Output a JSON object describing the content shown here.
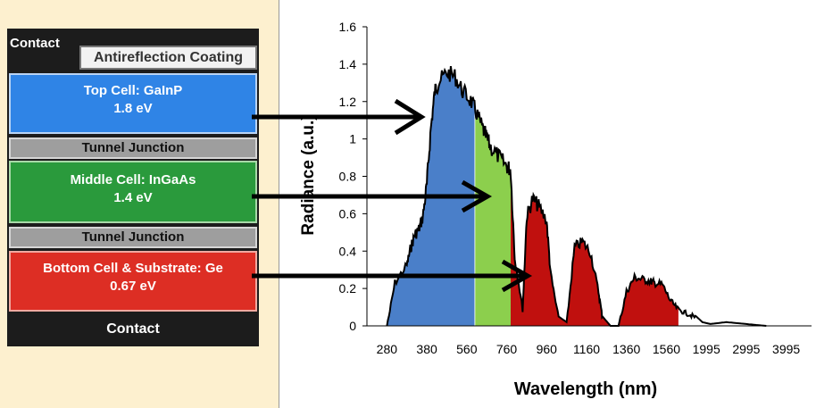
{
  "stack": {
    "contact_top": "Contact",
    "antireflection": "Antireflection Coating",
    "top_cell": {
      "name": "Top Cell: GaInP",
      "bandgap": "1.8 eV"
    },
    "tunnel_1": "Tunnel Junction",
    "middle_cell": {
      "name": "Middle Cell: InGaAs",
      "bandgap": "1.4 eV"
    },
    "tunnel_2": "Tunnel Junction",
    "bottom_cell": {
      "name": "Bottom Cell & Substrate: Ge",
      "bandgap": "0.67 eV"
    },
    "contact_bottom": "Contact"
  },
  "colors": {
    "top": "#4a7fc9",
    "middle": "#8ccf4d",
    "bottom": "#c0100e",
    "curve": "#000000"
  },
  "chart_data": {
    "type": "area",
    "xlabel": "Wavelength (nm)",
    "ylabel": "Radiance (a.u.)",
    "ylim": [
      0,
      1.6
    ],
    "x_tick_labels": [
      "280",
      "380",
      "560",
      "760",
      "960",
      "1160",
      "1360",
      "1560",
      "1995",
      "2995",
      "3995"
    ],
    "y_tick_labels": [
      "0",
      "0.2",
      "0.4",
      "0.6",
      "0.8",
      "1",
      "1.2",
      "1.4",
      "1.6"
    ],
    "band_edges_position": {
      "top_end": 2.7,
      "middle_end": 3.6
    },
    "spectrum": {
      "x_pos": [
        0.5,
        0.7,
        1.0,
        1.1,
        1.2,
        1.3,
        1.4,
        1.5,
        1.6,
        1.7,
        1.8,
        2.0,
        2.2,
        2.4,
        2.6,
        2.75,
        2.9,
        3.0,
        3.1,
        3.3,
        3.5,
        3.6,
        3.7,
        3.9,
        4.0,
        4.15,
        4.3,
        4.5,
        4.6,
        4.8,
        5.0,
        5.2,
        5.4,
        5.6,
        5.8,
        5.9,
        6.1,
        6.3,
        6.5,
        6.7,
        6.9,
        7.1,
        7.2,
        7.4,
        7.6,
        7.8,
        8.0,
        8.2,
        8.4,
        8.6,
        9.0,
        9.5,
        10.0
      ],
      "radiance": [
        0.0,
        0.25,
        0.35,
        0.45,
        0.52,
        0.55,
        0.62,
        0.8,
        1.1,
        1.3,
        1.35,
        1.4,
        1.38,
        1.3,
        1.25,
        1.18,
        1.1,
        1.05,
        1.0,
        0.95,
        0.9,
        0.88,
        0.4,
        0.1,
        0.62,
        0.72,
        0.68,
        0.6,
        0.3,
        0.05,
        0.02,
        0.45,
        0.48,
        0.42,
        0.2,
        0.05,
        0.0,
        0.0,
        0.2,
        0.28,
        0.27,
        0.26,
        0.25,
        0.24,
        0.15,
        0.1,
        0.08,
        0.06,
        0.02,
        0.01,
        0.02,
        0.01,
        0.0
      ]
    }
  }
}
